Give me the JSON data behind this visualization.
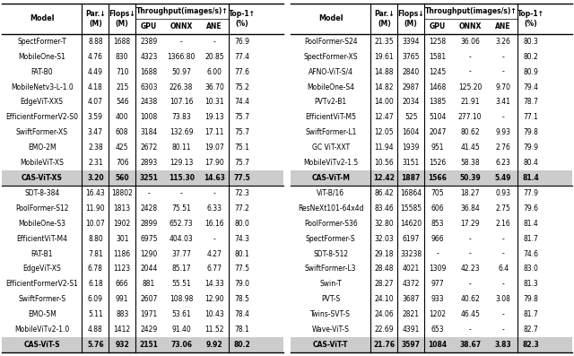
{
  "left_table": {
    "sections": [
      {
        "rows": [
          [
            "SpectFormer-T",
            "8.88",
            "1688",
            "2389",
            "-",
            "-",
            "76.9"
          ],
          [
            "MobileOne-S1",
            "4.76",
            "830",
            "4323",
            "1366.80",
            "20.85",
            "77.4"
          ],
          [
            "FAT-B0",
            "4.49",
            "710",
            "1688",
            "50.97",
            "6.00",
            "77.6"
          ],
          [
            "MobileNetv3-L-1.0",
            "4.18",
            "215",
            "6303",
            "226.38",
            "36.70",
            "75.2"
          ],
          [
            "EdgeViT-XXS",
            "4.07",
            "546",
            "2438",
            "107.16",
            "10.31",
            "74.4"
          ],
          [
            "EfficientFormerV2-S0",
            "3.59",
            "400",
            "1008",
            "73.83",
            "19.13",
            "75.7"
          ],
          [
            "SwiftFormer-XS",
            "3.47",
            "608",
            "3184",
            "132.69",
            "17.11",
            "75.7"
          ],
          [
            "EMO-2M",
            "2.38",
            "425",
            "2672",
            "80.11",
            "19.07",
            "75.1"
          ],
          [
            "MobileViT-XS",
            "2.31",
            "706",
            "2893",
            "129.13",
            "17.90",
            "75.7"
          ]
        ],
        "highlight": [
          "CAS-ViT-XS",
          "3.20",
          "560",
          "3251",
          "115.30",
          "14.63",
          "77.5"
        ]
      },
      {
        "rows": [
          [
            "SDT-8-384",
            "16.43",
            "18802",
            "-",
            "-",
            "-",
            "72.3"
          ],
          [
            "PoolFormer-S12",
            "11.90",
            "1813",
            "2428",
            "75.51",
            "6.33",
            "77.2"
          ],
          [
            "MobileOne-S3",
            "10.07",
            "1902",
            "2899",
            "652.73",
            "16.16",
            "80.0"
          ],
          [
            "EfficientViT-M4",
            "8.80",
            "301",
            "6975",
            "404.03",
            "-",
            "74.3"
          ],
          [
            "FAT-B1",
            "7.81",
            "1186",
            "1290",
            "37.77",
            "4.27",
            "80.1"
          ],
          [
            "EdgeViT-XS",
            "6.78",
            "1123",
            "2044",
            "85.17",
            "6.77",
            "77.5"
          ],
          [
            "EfficientFormerV2-S1",
            "6.18",
            "666",
            "881",
            "55.51",
            "14.33",
            "79.0"
          ],
          [
            "SwiftFormer-S",
            "6.09",
            "991",
            "2607",
            "108.98",
            "12.90",
            "78.5"
          ],
          [
            "EMO-5M",
            "5.11",
            "883",
            "1971",
            "53.61",
            "10.43",
            "78.4"
          ],
          [
            "MobileViTv2-1.0",
            "4.88",
            "1412",
            "2429",
            "91.40",
            "11.52",
            "78.1"
          ]
        ],
        "highlight": [
          "CAS-ViT-S",
          "5.76",
          "932",
          "2151",
          "73.06",
          "9.92",
          "80.2"
        ]
      }
    ]
  },
  "right_table": {
    "sections": [
      {
        "rows": [
          [
            "PoolFormer-S24",
            "21.35",
            "3394",
            "1258",
            "36.06",
            "3.26",
            "80.3"
          ],
          [
            "SpectFormer-XS",
            "19.61",
            "3765",
            "1581",
            "-",
            "-",
            "80.2"
          ],
          [
            "AFNO-ViT-S/4",
            "14.88",
            "2840",
            "1245",
            "-",
            "-",
            "80.9"
          ],
          [
            "MobileOne-S4",
            "14.82",
            "2987",
            "1468",
            "125.20",
            "9.70",
            "79.4"
          ],
          [
            "PVTv2-B1",
            "14.00",
            "2034",
            "1385",
            "21.91",
            "3.41",
            "78.7"
          ],
          [
            "EfficientViT-M5",
            "12.47",
            "525",
            "5104",
            "277.10",
            "-",
            "77.1"
          ],
          [
            "SwiftFormer-L1",
            "12.05",
            "1604",
            "2047",
            "80.62",
            "9.93",
            "79.8"
          ],
          [
            "GC ViT-XXT",
            "11.94",
            "1939",
            "951",
            "41.45",
            "2.76",
            "79.9"
          ],
          [
            "MobileViTv2-1.5",
            "10.56",
            "3151",
            "1526",
            "58.38",
            "6.23",
            "80.4"
          ]
        ],
        "highlight": [
          "CAS-ViT-M",
          "12.42",
          "1887",
          "1566",
          "50.39",
          "5.49",
          "81.4"
        ]
      },
      {
        "rows": [
          [
            "ViT-B/16",
            "86.42",
            "16864",
            "705",
            "18.27",
            "0.93",
            "77.9"
          ],
          [
            "ResNeXt101-64x4d",
            "83.46",
            "15585",
            "606",
            "36.84",
            "2.75",
            "79.6"
          ],
          [
            "PoolFormer-S36",
            "32.80",
            "14620",
            "853",
            "17.29",
            "2.16",
            "81.4"
          ],
          [
            "SpectFormer-S",
            "32.03",
            "6197",
            "966",
            "-",
            "-",
            "81.7"
          ],
          [
            "SDT-8-512",
            "29.18",
            "33238",
            "-",
            "-",
            "-",
            "74.6"
          ],
          [
            "SwiftFormer-L3",
            "28.48",
            "4021",
            "1309",
            "42.23",
            "6.4",
            "83.0"
          ],
          [
            "Swin-T",
            "28.27",
            "4372",
            "977",
            "-",
            "-",
            "81.3"
          ],
          [
            "PVT-S",
            "24.10",
            "3687",
            "933",
            "40.62",
            "3.08",
            "79.8"
          ],
          [
            "Twins-SVT-S",
            "24.06",
            "2821",
            "1202",
            "46.45",
            "-",
            "81.7"
          ],
          [
            "Wave-ViT-S",
            "22.69",
            "4391",
            "653",
            "-",
            "-",
            "82.7"
          ]
        ],
        "highlight": [
          "CAS-ViT-T",
          "21.76",
          "3597",
          "1084",
          "38.67",
          "3.83",
          "82.3"
        ]
      }
    ]
  },
  "highlight_color": "#cccccc",
  "font_size": 5.5,
  "header_font_size": 5.8,
  "bold_font_size": 5.5
}
